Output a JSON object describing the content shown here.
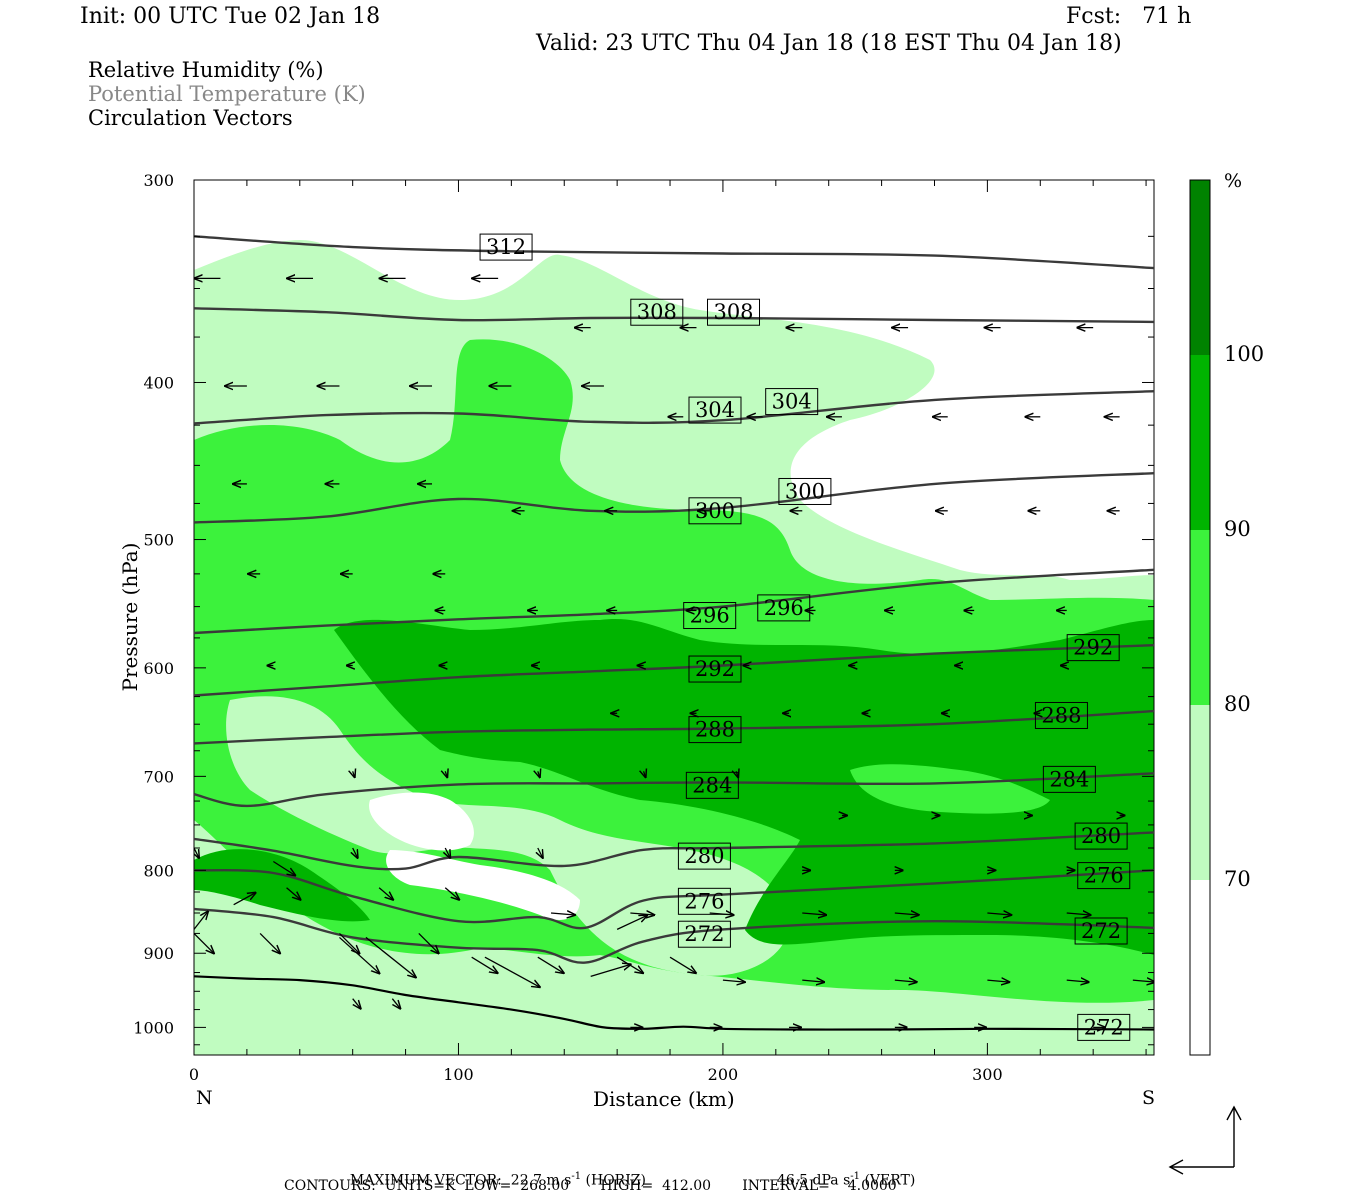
{
  "header": {
    "init": "Init: 00 UTC Tue 02 Jan 18",
    "fcst": "Fcst:   71 h",
    "valid": "Valid: 23 UTC Thu 04 Jan 18 (18 EST Thu 04 Jan 18)"
  },
  "legend": {
    "rh": "Relative Humidity (%)",
    "theta": "Potential Temperature (K)",
    "vectors": "Circulation Vectors"
  },
  "footer": {
    "max_vector": "MAXIMUM VECTOR:  22.7 m s",
    "horiz_unit": "-1",
    "horiz_tag": " (HORIZ)",
    "vert_val": "46.5 dPa s",
    "vert_unit": "-1",
    "vert_tag": " (VERT)",
    "contours": "CONTOURS:  UNITS=K  LOW=  268.00       HIGH=  412.00       INTERVAL=    4.0000"
  },
  "colors": {
    "rh_70_80": "#c0fcc0",
    "rh_80_90": "#3cf23c",
    "rh_90_100": "#00b400",
    "rh_100": "#008200",
    "contour": "#3a3a3a"
  },
  "chart_data": {
    "type": "cross-section",
    "xlabel": "Distance (km)",
    "ylabel": "Pressure (hPa)",
    "xlim": [
      0,
      363
    ],
    "ylim": [
      1040,
      300
    ],
    "y_log": true,
    "x_ticks": [
      0,
      100,
      200,
      300
    ],
    "x_ticklabels": [
      "0",
      "100",
      "200",
      "300"
    ],
    "y_ticks": [
      300,
      400,
      500,
      600,
      700,
      800,
      900,
      1000
    ],
    "y_ticklabels": [
      "300",
      "400",
      "500",
      "600",
      "700",
      "800",
      "900",
      "1000"
    ],
    "endpoint_left": "N",
    "endpoint_right": "S",
    "colorbar": {
      "unit": "%",
      "levels": [
        70,
        80,
        90,
        100
      ],
      "labels": [
        "70",
        "80",
        "90",
        "100"
      ]
    },
    "isentropes": [
      {
        "theta": 312,
        "labels": [
          {
            "x": 118,
            "p": 330,
            "text": "312"
          }
        ],
        "points": [
          [
            0,
            325
          ],
          [
            60,
            330
          ],
          [
            120,
            332
          ],
          [
            200,
            333
          ],
          [
            280,
            334
          ],
          [
            363,
            340
          ]
        ]
      },
      {
        "theta": 308,
        "labels": [
          {
            "x": 175,
            "p": 362,
            "text": "308"
          },
          {
            "x": 204,
            "p": 362,
            "text": "308"
          }
        ],
        "points": [
          [
            0,
            360
          ],
          [
            50,
            362
          ],
          [
            100,
            366
          ],
          [
            150,
            365
          ],
          [
            200,
            365
          ],
          [
            280,
            366
          ],
          [
            363,
            367
          ]
        ]
      },
      {
        "theta": 304,
        "labels": [
          {
            "x": 197,
            "p": 416,
            "text": "304"
          },
          {
            "x": 226,
            "p": 411,
            "text": "304"
          }
        ],
        "points": [
          [
            0,
            424
          ],
          [
            50,
            419
          ],
          [
            100,
            418
          ],
          [
            150,
            423
          ],
          [
            200,
            422
          ],
          [
            280,
            410
          ],
          [
            363,
            405
          ]
        ]
      },
      {
        "theta": 300,
        "labels": [
          {
            "x": 197,
            "p": 480,
            "text": "300"
          },
          {
            "x": 231,
            "p": 467,
            "text": "300"
          }
        ],
        "points": [
          [
            0,
            488
          ],
          [
            50,
            484
          ],
          [
            100,
            472
          ],
          [
            150,
            480
          ],
          [
            200,
            478
          ],
          [
            280,
            462
          ],
          [
            363,
            455
          ]
        ]
      },
      {
        "theta": 296,
        "labels": [
          {
            "x": 195,
            "p": 557,
            "text": "296"
          },
          {
            "x": 223,
            "p": 551,
            "text": "296"
          }
        ],
        "points": [
          [
            0,
            571
          ],
          [
            50,
            565
          ],
          [
            100,
            560
          ],
          [
            150,
            556
          ],
          [
            200,
            550
          ],
          [
            280,
            532
          ],
          [
            363,
            522
          ]
        ]
      },
      {
        "theta": 292,
        "labels": [
          {
            "x": 197,
            "p": 601,
            "text": "292"
          },
          {
            "x": 340,
            "p": 583,
            "text": "292"
          }
        ],
        "points": [
          [
            0,
            624
          ],
          [
            50,
            616
          ],
          [
            100,
            608
          ],
          [
            150,
            603
          ],
          [
            200,
            598
          ],
          [
            280,
            588
          ],
          [
            363,
            581
          ]
        ]
      },
      {
        "theta": 288,
        "labels": [
          {
            "x": 197,
            "p": 655,
            "text": "288"
          },
          {
            "x": 328,
            "p": 642,
            "text": "288"
          }
        ],
        "points": [
          [
            0,
            668
          ],
          [
            50,
            662
          ],
          [
            100,
            657
          ],
          [
            150,
            655
          ],
          [
            200,
            654
          ],
          [
            280,
            650
          ],
          [
            363,
            638
          ]
        ]
      },
      {
        "theta": 284,
        "labels": [
          {
            "x": 196,
            "p": 709,
            "text": "284"
          },
          {
            "x": 331,
            "p": 703,
            "text": "284"
          }
        ],
        "points": [
          [
            0,
            718
          ],
          [
            20,
            730
          ],
          [
            50,
            718
          ],
          [
            100,
            708
          ],
          [
            150,
            707
          ],
          [
            200,
            706
          ],
          [
            280,
            707
          ],
          [
            363,
            697
          ]
        ]
      },
      {
        "theta": 280,
        "labels": [
          {
            "x": 193,
            "p": 784,
            "text": "280"
          },
          {
            "x": 343,
            "p": 762,
            "text": "280"
          }
        ],
        "points": [
          [
            0,
            765
          ],
          [
            30,
            778
          ],
          [
            60,
            795
          ],
          [
            80,
            798
          ],
          [
            100,
            785
          ],
          [
            140,
            795
          ],
          [
            170,
            777
          ],
          [
            200,
            775
          ],
          [
            280,
            770
          ],
          [
            363,
            758
          ]
        ]
      },
      {
        "theta": 276,
        "labels": [
          {
            "x": 193,
            "p": 836,
            "text": "276"
          },
          {
            "x": 344,
            "p": 806,
            "text": "276"
          }
        ],
        "points": [
          [
            0,
            800
          ],
          [
            30,
            803
          ],
          [
            60,
            830
          ],
          [
            100,
            860
          ],
          [
            130,
            855
          ],
          [
            148,
            868
          ],
          [
            170,
            835
          ],
          [
            200,
            828
          ],
          [
            280,
            815
          ],
          [
            363,
            800
          ]
        ]
      },
      {
        "theta": 272,
        "labels": [
          {
            "x": 193,
            "p": 876,
            "text": "272"
          },
          {
            "x": 343,
            "p": 872,
            "text": "272"
          },
          {
            "x": 344,
            "p": 1000,
            "text": "272"
          }
        ],
        "points": [
          [
            0,
            845
          ],
          [
            30,
            855
          ],
          [
            60,
            880
          ],
          [
            100,
            893
          ],
          [
            130,
            896
          ],
          [
            148,
            912
          ],
          [
            170,
            885
          ],
          [
            200,
            870
          ],
          [
            280,
            860
          ],
          [
            363,
            868
          ]
        ]
      }
    ],
    "vector_rows_note": "circulation vectors: horizontal component northward (left) above ~650 hPa, southward (right) below ~750 hPa with strong descending southward flow near 100-150 km below 850 hPa"
  }
}
